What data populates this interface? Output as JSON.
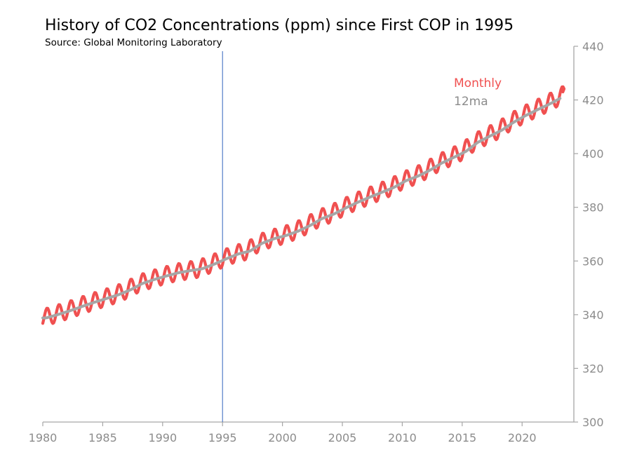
{
  "title": "History of CO2 Concentrations (ppm) since First COP in 1995",
  "subtitle": "Source: Global Monitoring Laboratory",
  "colors": {
    "monthly": "#f05050",
    "ma12": "#a6a6a6",
    "marker": "#4472c4",
    "axis": "#a6a6a6"
  },
  "chart_data": {
    "type": "line",
    "title": "History of CO2 Concentrations (ppm) since First COP in 1995",
    "subtitle": "Source: Global Monitoring Laboratory",
    "xlabel": "",
    "ylabel": "",
    "xlim": [
      1980,
      2024.3
    ],
    "ylim": [
      300,
      440
    ],
    "x_ticks": [
      "1980",
      "1985",
      "1990",
      "1995",
      "2000",
      "2005",
      "2010",
      "2015",
      "2020"
    ],
    "y_ticks": [
      "300",
      "320",
      "340",
      "360",
      "380",
      "400",
      "420",
      "440"
    ],
    "y_axis_position": "right",
    "grid": false,
    "legend_placement": "top-right",
    "vertical_marker_x": 1995,
    "series": [
      {
        "name": "Monthly",
        "frequency": "monthly",
        "seasonal_amplitude_ppm": 3.2,
        "annual_x": [
          1980,
          1981,
          1982,
          1983,
          1984,
          1985,
          1986,
          1987,
          1988,
          1989,
          1990,
          1991,
          1992,
          1993,
          1994,
          1995,
          1996,
          1997,
          1998,
          1999,
          2000,
          2001,
          2002,
          2003,
          2004,
          2005,
          2006,
          2007,
          2008,
          2009,
          2010,
          2011,
          2012,
          2013,
          2014,
          2015,
          2016,
          2017,
          2018,
          2019,
          2020,
          2021,
          2022,
          2023
        ],
        "annual_values": [
          338.8,
          340.1,
          341.5,
          343.1,
          344.6,
          346.0,
          347.4,
          349.2,
          351.6,
          353.1,
          354.4,
          355.6,
          356.4,
          357.1,
          358.8,
          360.8,
          362.6,
          363.7,
          366.6,
          368.3,
          369.5,
          371.1,
          373.2,
          375.8,
          377.5,
          379.8,
          381.9,
          383.8,
          385.6,
          387.4,
          389.9,
          391.6,
          393.8,
          396.5,
          398.6,
          400.8,
          404.2,
          406.5,
          408.7,
          411.7,
          414.2,
          416.4,
          418.5,
          420.9
        ]
      },
      {
        "name": "12ma",
        "frequency": "12-month moving average",
        "annual_x": [
          1980,
          1981,
          1982,
          1983,
          1984,
          1985,
          1986,
          1987,
          1988,
          1989,
          1990,
          1991,
          1992,
          1993,
          1994,
          1995,
          1996,
          1997,
          1998,
          1999,
          2000,
          2001,
          2002,
          2003,
          2004,
          2005,
          2006,
          2007,
          2008,
          2009,
          2010,
          2011,
          2012,
          2013,
          2014,
          2015,
          2016,
          2017,
          2018,
          2019,
          2020,
          2021,
          2022,
          2023
        ],
        "annual_values": [
          338.8,
          340.1,
          341.5,
          343.1,
          344.6,
          346.0,
          347.4,
          349.2,
          351.6,
          353.1,
          354.4,
          355.6,
          356.4,
          357.1,
          358.8,
          360.8,
          362.6,
          363.7,
          366.6,
          368.3,
          369.5,
          371.1,
          373.2,
          375.8,
          377.5,
          379.8,
          381.9,
          383.8,
          385.6,
          387.4,
          389.9,
          391.6,
          393.8,
          396.5,
          398.6,
          400.8,
          404.2,
          406.5,
          408.7,
          411.7,
          414.2,
          416.4,
          418.5,
          420.9
        ]
      }
    ]
  }
}
